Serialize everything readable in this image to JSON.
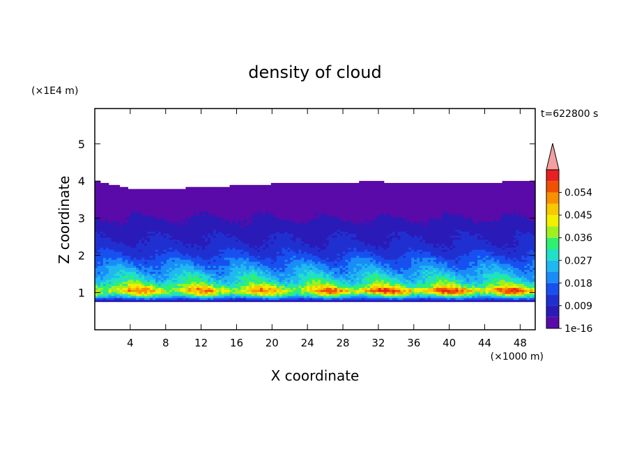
{
  "chart_data": {
    "type": "heatmap",
    "title": "density of cloud",
    "xlabel": "X coordinate",
    "ylabel": "Z coordinate",
    "x_unit_label": "(×1000 m)",
    "y_unit_label": "(×1E4 m)",
    "time_label": "t=622800 s",
    "xlim": [
      0,
      49.7
    ],
    "ylim": [
      0,
      5.95
    ],
    "x_ticks": [
      "4",
      "8",
      "12",
      "16",
      "20",
      "24",
      "28",
      "32",
      "36",
      "40",
      "44",
      "48"
    ],
    "y_ticks": [
      "1",
      "2",
      "3",
      "4",
      "5"
    ],
    "colorbar": {
      "tick_labels": [
        "0.054",
        "0.045",
        "0.036",
        "0.027",
        "0.018",
        "0.009",
        "1e-16"
      ],
      "extend": "max",
      "levels": [
        1e-16,
        0.0045,
        0.009,
        0.0135,
        0.018,
        0.0225,
        0.027,
        0.0315,
        0.036,
        0.0405,
        0.045,
        0.0495,
        0.054,
        0.0585,
        0.063
      ],
      "colors": [
        "#5a0aa8",
        "#2a1ab8",
        "#2030d0",
        "#1850f0",
        "#1a8cf8",
        "#20b8f0",
        "#20e0c8",
        "#30f070",
        "#a0f020",
        "#f0f000",
        "#f8c800",
        "#f89000",
        "#f05000",
        "#e82020"
      ],
      "over_color": "#f4a0a0"
    },
    "profile": {
      "z": [
        0.78,
        0.8,
        0.85,
        0.95,
        1.05,
        1.12,
        1.2,
        1.3,
        1.45,
        1.6,
        1.75,
        1.9,
        2.05,
        2.2,
        2.4,
        2.6,
        2.8,
        3.0,
        3.3,
        3.6,
        3.8,
        3.9,
        4.0
      ],
      "density": [
        0.006,
        0.008,
        0.018,
        0.035,
        0.046,
        0.042,
        0.036,
        0.03,
        0.026,
        0.022,
        0.019,
        0.016,
        0.013,
        0.011,
        0.009,
        0.008,
        0.006,
        0.0045,
        0.003,
        0.002,
        0.0015,
        0.001,
        0.0005
      ]
    },
    "cloud_top_z": [
      4.0,
      3.78,
      3.8,
      3.85,
      3.9,
      3.95,
      3.97,
      3.98,
      3.96,
      3.94,
      3.97,
      4.0
    ],
    "cloud_base_z": 0.8
  }
}
